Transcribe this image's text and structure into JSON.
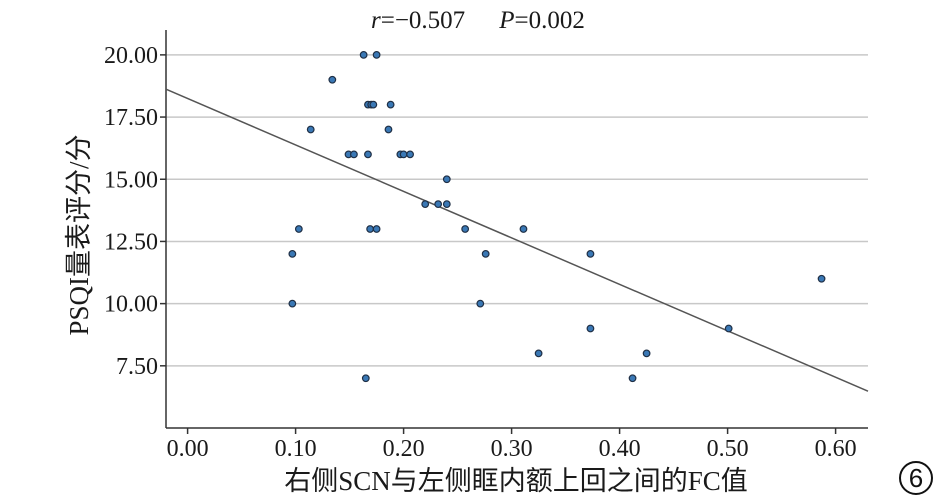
{
  "chart_data": {
    "type": "scatter",
    "title": "",
    "stats": {
      "r_symbol": "r",
      "r_value": "=−0.507",
      "p_symbol": "P",
      "p_value": "=0.002"
    },
    "xlabel": "右侧SCN与左侧眶内额上回之间的FC值",
    "ylabel": "PSQI量表评分/分",
    "panel_label": "6",
    "xlim": [
      -0.02,
      0.63
    ],
    "ylim": [
      5.0,
      21.0
    ],
    "xticks": [
      0.0,
      0.1,
      0.2,
      0.3,
      0.4,
      0.5,
      0.6
    ],
    "xtick_labels": [
      "0.00",
      "0.10",
      "0.20",
      "0.30",
      "0.40",
      "0.50",
      "0.60"
    ],
    "yticks": [
      7.5,
      10.0,
      12.5,
      15.0,
      17.5,
      20.0
    ],
    "ytick_labels": [
      "7.50",
      "10.00",
      "12.50",
      "15.00",
      "17.50",
      "20.00"
    ],
    "grid": "horizontal",
    "marker_color": "#3a78b5",
    "marker_edge_color": "#1f2f45",
    "line_color": "#555555",
    "points": [
      {
        "x": 0.163,
        "y": 20
      },
      {
        "x": 0.175,
        "y": 20
      },
      {
        "x": 0.134,
        "y": 19
      },
      {
        "x": 0.167,
        "y": 18
      },
      {
        "x": 0.17,
        "y": 18
      },
      {
        "x": 0.172,
        "y": 18
      },
      {
        "x": 0.188,
        "y": 18
      },
      {
        "x": 0.114,
        "y": 17
      },
      {
        "x": 0.186,
        "y": 17
      },
      {
        "x": 0.149,
        "y": 16
      },
      {
        "x": 0.154,
        "y": 16
      },
      {
        "x": 0.167,
        "y": 16
      },
      {
        "x": 0.197,
        "y": 16
      },
      {
        "x": 0.2,
        "y": 16
      },
      {
        "x": 0.206,
        "y": 16
      },
      {
        "x": 0.24,
        "y": 15
      },
      {
        "x": 0.22,
        "y": 14
      },
      {
        "x": 0.232,
        "y": 14
      },
      {
        "x": 0.24,
        "y": 14
      },
      {
        "x": 0.103,
        "y": 13
      },
      {
        "x": 0.169,
        "y": 13
      },
      {
        "x": 0.175,
        "y": 13
      },
      {
        "x": 0.257,
        "y": 13
      },
      {
        "x": 0.311,
        "y": 13
      },
      {
        "x": 0.097,
        "y": 12
      },
      {
        "x": 0.276,
        "y": 12
      },
      {
        "x": 0.373,
        "y": 12
      },
      {
        "x": 0.097,
        "y": 10
      },
      {
        "x": 0.271,
        "y": 10
      },
      {
        "x": 0.587,
        "y": 11
      },
      {
        "x": 0.373,
        "y": 9
      },
      {
        "x": 0.501,
        "y": 9
      },
      {
        "x": 0.325,
        "y": 8
      },
      {
        "x": 0.425,
        "y": 8
      },
      {
        "x": 0.165,
        "y": 7
      },
      {
        "x": 0.412,
        "y": 7
      }
    ],
    "fit_line": {
      "x": [
        -0.02,
        0.63
      ],
      "y": [
        18.62,
        6.48
      ]
    }
  }
}
